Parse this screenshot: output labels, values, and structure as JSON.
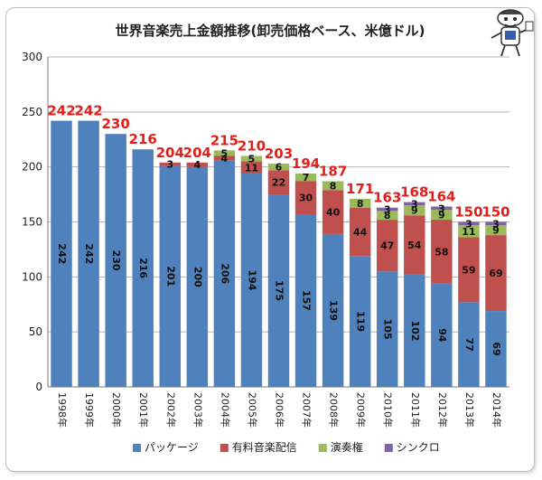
{
  "chart_data": {
    "type": "bar",
    "stacked": true,
    "title": "世界音楽売上金額推移(卸売価格ベース、米億ドル)",
    "categories": [
      "1998年",
      "1999年",
      "2000年",
      "2001年",
      "2002年",
      "2003年",
      "2004年",
      "2005年",
      "2006年",
      "2007年",
      "2008年",
      "2009年",
      "2010年",
      "2011年",
      "2012年",
      "2013年",
      "2014年"
    ],
    "series": [
      {
        "name": "パッケージ",
        "color": "#4f81bd",
        "values": [
          242,
          242,
          230,
          216,
          201,
          200,
          206,
          194,
          175,
          157,
          139,
          119,
          105,
          102,
          94,
          77,
          69
        ]
      },
      {
        "name": "有料音楽配信",
        "color": "#c0504d",
        "values": [
          0,
          0,
          0,
          0,
          3,
          4,
          4,
          11,
          22,
          30,
          40,
          44,
          47,
          54,
          58,
          59,
          69
        ]
      },
      {
        "name": "演奏権",
        "color": "#9bbb59",
        "values": [
          0,
          0,
          0,
          0,
          0,
          0,
          5,
          5,
          6,
          7,
          8,
          8,
          8,
          9,
          9,
          11,
          9
        ]
      },
      {
        "name": "シンクロ",
        "color": "#8064a2",
        "values": [
          0,
          0,
          0,
          0,
          0,
          0,
          0,
          0,
          0,
          0,
          0,
          0,
          3,
          3,
          3,
          3,
          3
        ]
      }
    ],
    "totals": [
      242,
      242,
      230,
      216,
      204,
      204,
      215,
      210,
      203,
      194,
      187,
      171,
      163,
      168,
      164,
      150,
      150
    ],
    "ylim": [
      0,
      300
    ],
    "yticks": [
      0,
      50,
      100,
      150,
      200,
      250,
      300
    ],
    "grid": true,
    "legend": "bottom"
  }
}
